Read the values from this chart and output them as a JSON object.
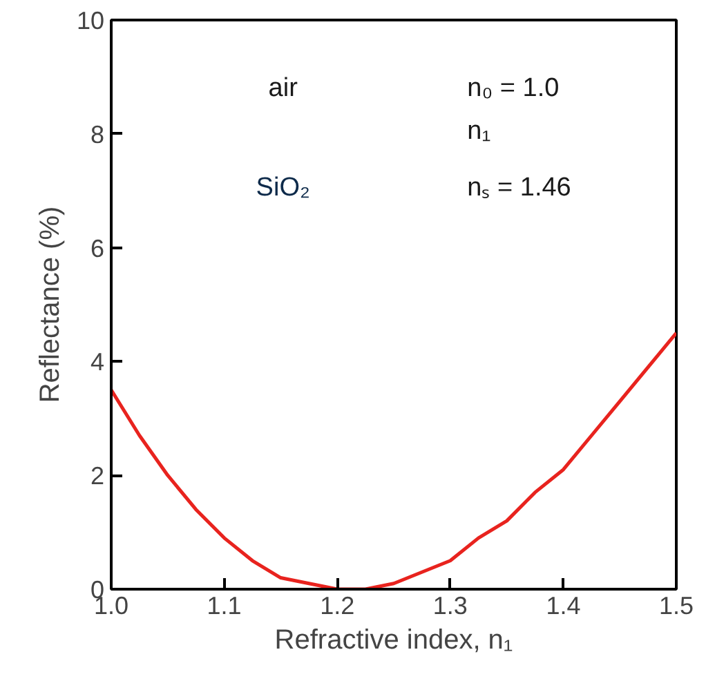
{
  "chart_data": {
    "type": "line",
    "xlabel": "Refractive index, n₁",
    "ylabel": "Reflectance (%)",
    "x": [
      1.0,
      1.025,
      1.05,
      1.075,
      1.1,
      1.125,
      1.15,
      1.175,
      1.2,
      1.225,
      1.25,
      1.275,
      1.3,
      1.325,
      1.35,
      1.375,
      1.4,
      1.425,
      1.45,
      1.475,
      1.5
    ],
    "series": [
      {
        "color": "#e8231e",
        "values": [
          3.5,
          2.7,
          2.0,
          1.4,
          0.9,
          0.5,
          0.2,
          0.1,
          0.0,
          0.0,
          0.1,
          0.3,
          0.5,
          0.9,
          1.2,
          1.7,
          2.1,
          2.7,
          3.3,
          3.9,
          4.5
        ]
      }
    ],
    "xlim": [
      1.0,
      1.5
    ],
    "xticks": [
      {
        "value": 1.0,
        "label": "1.0"
      },
      1.1,
      1.2,
      1.3,
      1.4,
      1.5
    ],
    "ylim": [
      0,
      10
    ],
    "yticks": [
      0,
      2,
      4,
      6,
      8,
      10
    ],
    "annotations": [
      "air",
      "n₀ = 1.0",
      "n₁",
      "SiO₂",
      "nₛ = 1.46"
    ],
    "grid": false,
    "marker": "none",
    "line_style": "solid"
  }
}
